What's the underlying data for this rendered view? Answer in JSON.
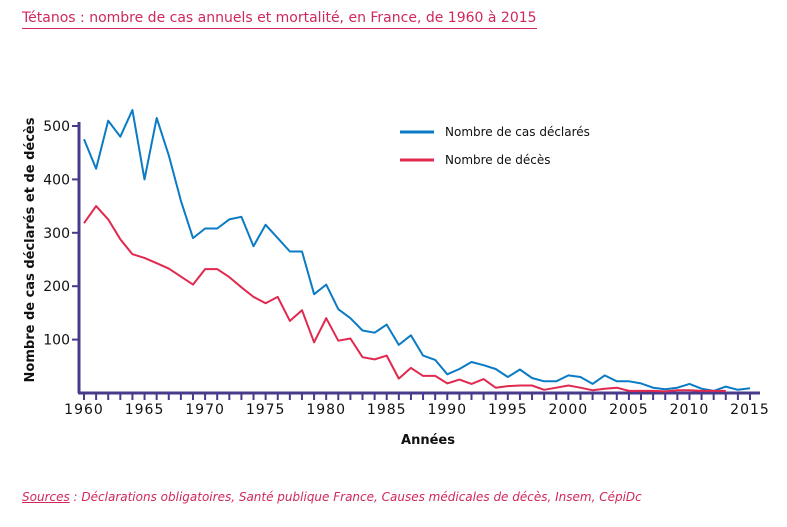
{
  "chart_data": {
    "type": "line",
    "title": "Tétanos : nombre de cas annuels et mortalité, en France, de 1960 à 2015",
    "xlabel": "Années",
    "ylabel": "Nombre de cas déclarés et de décès",
    "xlim": [
      1960,
      2015
    ],
    "ylim": [
      0,
      540
    ],
    "xticks": [
      "1960",
      "1965",
      "1970",
      "1975",
      "1980",
      "1985",
      "1990",
      "1995",
      "2000",
      "2005",
      "2010",
      "2015"
    ],
    "yticks": [
      "100",
      "200",
      "300",
      "400",
      "500"
    ],
    "grid": false,
    "legend_position": "top-center",
    "colors": {
      "cases": "#0a7bc4",
      "deaths": "#e0294f",
      "axis": "#4a3a8c"
    },
    "series": [
      {
        "name": "Nombre de cas déclarés",
        "start_year": 1960,
        "values": [
          475,
          420,
          510,
          480,
          530,
          400,
          515,
          445,
          360,
          290,
          308,
          308,
          325,
          330,
          275,
          315,
          290,
          265,
          265,
          185,
          203,
          157,
          140,
          117,
          113,
          128,
          90,
          108,
          70,
          62,
          35,
          45,
          58,
          52,
          45,
          30,
          44,
          28,
          22,
          22,
          33,
          30,
          17,
          33,
          22,
          22,
          18,
          10,
          7,
          10,
          17,
          8,
          4,
          12,
          6,
          9
        ]
      },
      {
        "name": "Nombre de décès",
        "start_year": 1960,
        "values": [
          318,
          350,
          325,
          288,
          260,
          253,
          243,
          233,
          218,
          203,
          232,
          232,
          217,
          198,
          180,
          168,
          180,
          135,
          155,
          95,
          140,
          98,
          102,
          67,
          63,
          70,
          27,
          47,
          32,
          32,
          18,
          25,
          17,
          26,
          10,
          13,
          14,
          14,
          6,
          10,
          14,
          10,
          5,
          8,
          10,
          4,
          4,
          4,
          3,
          5,
          5,
          4,
          4,
          4
        ]
      }
    ]
  },
  "source": {
    "label": "Sources",
    "text": " : Déclarations obligatoires, Santé publique France, Causes médicales de décès, Insem, CépiDc"
  }
}
